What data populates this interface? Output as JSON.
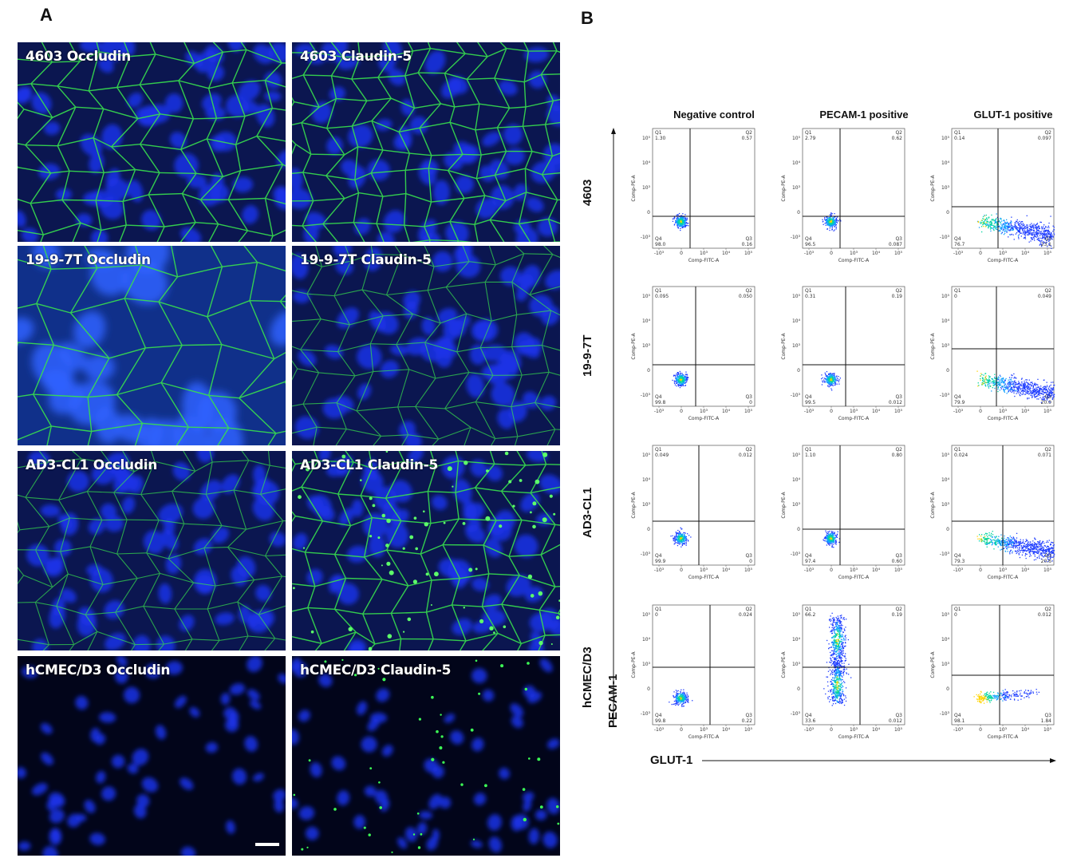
{
  "panel_a": {
    "letter": "A",
    "images": [
      {
        "label": "4603 Occludin",
        "style": "mesh-bright"
      },
      {
        "label": "4603 Claudin-5",
        "style": "mesh-fine"
      },
      {
        "label": "19-9-7T Occludin",
        "style": "mesh-large"
      },
      {
        "label": "19-9-7T Claudin-5",
        "style": "mesh-dim"
      },
      {
        "label": "AD3-CL1 Occludin",
        "style": "mesh-dim"
      },
      {
        "label": "AD3-CL1 Claudin-5",
        "style": "mesh-dots"
      },
      {
        "label": "hCMEC/D3 Occludin",
        "style": "nuclei"
      },
      {
        "label": "hCMEC/D3 Claudin-5",
        "style": "nuclei-dots"
      }
    ]
  },
  "panel_b": {
    "letter": "B",
    "columns": [
      "Negative control",
      "PECAM-1 positive",
      "GLUT-1 positive"
    ],
    "rows": [
      "4603",
      "19-9-7T",
      "AD3-CL1",
      "hCMEC/D3"
    ],
    "y_axis_title": "PECAM-1",
    "x_axis_title": "GLUT-1",
    "plot_x_label": "Comp-FITC-A",
    "plot_y_label": "Comp-PE-A",
    "quadrants": [
      [
        {
          "q1": "1.30",
          "q2": "0.57",
          "q3": "0.16",
          "q4": "98.0"
        },
        {
          "q1": "2.79",
          "q2": "0.62",
          "q3": "0.087",
          "q4": "96.5"
        },
        {
          "q1": "0.14",
          "q2": "0.097",
          "q3": "23.1",
          "q4": "76.7"
        }
      ],
      [
        {
          "q1": "0.095",
          "q2": "0.050",
          "q3": "0",
          "q4": "99.8"
        },
        {
          "q1": "0.31",
          "q2": "0.19",
          "q3": "0.012",
          "q4": "99.5"
        },
        {
          "q1": "0",
          "q2": "0.049",
          "q3": "20.0",
          "q4": "79.9"
        }
      ],
      [
        {
          "q1": "0.049",
          "q2": "0.012",
          "q3": "0",
          "q4": "99.9"
        },
        {
          "q1": "1.10",
          "q2": "0.80",
          "q3": "0.60",
          "q4": "97.4"
        },
        {
          "q1": "0.024",
          "q2": "0.071",
          "q3": "20.6",
          "q4": "79.3"
        }
      ],
      [
        {
          "q1": "0",
          "q2": "0.024",
          "q3": "0.22",
          "q4": "99.8"
        },
        {
          "q1": "66.2",
          "q2": "0.19",
          "q3": "0.012",
          "q4": "33.6"
        },
        {
          "q1": "0",
          "q2": "0.012",
          "q3": "1.84",
          "q4": "98.1"
        }
      ]
    ],
    "population_shapes": [
      [
        "cluster",
        "cluster",
        "smear"
      ],
      [
        "cluster",
        "cluster",
        "smear"
      ],
      [
        "cluster",
        "cluster",
        "smear"
      ],
      [
        "cluster",
        "vertical",
        "horizontal"
      ]
    ],
    "colors": {
      "dot_low": "#1f3dff",
      "dot_high": "#00d6a0",
      "hot": "#ffd400",
      "green": "#30e050",
      "nucleus": "#1d3bff"
    }
  }
}
